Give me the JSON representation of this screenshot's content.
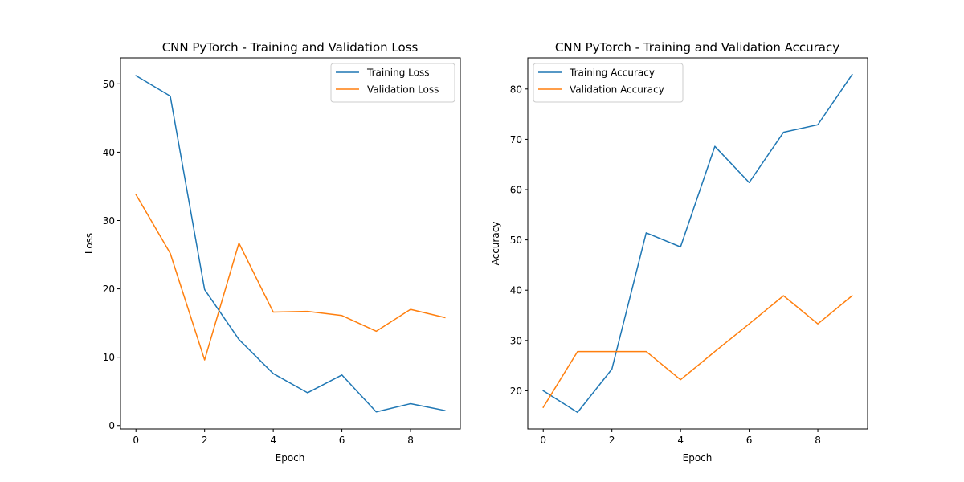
{
  "chart_data": [
    {
      "type": "line",
      "title": "CNN PyTorch - Training and Validation Loss",
      "xlabel": "Epoch",
      "ylabel": "Loss",
      "x": [
        0,
        1,
        2,
        3,
        4,
        5,
        6,
        7,
        8,
        9
      ],
      "xlim": [
        -0.45,
        9.45
      ],
      "ylim": [
        -0.5,
        53.8
      ],
      "xticks": [
        0,
        2,
        4,
        6,
        8
      ],
      "yticks": [
        0,
        10,
        20,
        30,
        40,
        50
      ],
      "grid": false,
      "legend_position": "upper right",
      "series": [
        {
          "name": "Training Loss",
          "color": "#1f77b4",
          "values": [
            51.2,
            48.2,
            19.9,
            12.6,
            7.6,
            4.8,
            7.4,
            2.0,
            3.2,
            2.2
          ]
        },
        {
          "name": "Validation Loss",
          "color": "#ff7f0e",
          "values": [
            33.8,
            25.2,
            9.6,
            26.7,
            16.6,
            16.7,
            16.1,
            13.8,
            17.0,
            15.8
          ]
        }
      ]
    },
    {
      "type": "line",
      "title": "CNN PyTorch - Training and Validation Accuracy",
      "xlabel": "Epoch",
      "ylabel": "Accuracy",
      "x": [
        0,
        1,
        2,
        3,
        4,
        5,
        6,
        7,
        8,
        9
      ],
      "xlim": [
        -0.45,
        9.45
      ],
      "ylim": [
        12.4,
        86.2
      ],
      "xticks": [
        0,
        2,
        4,
        6,
        8
      ],
      "yticks": [
        20,
        30,
        40,
        50,
        60,
        70,
        80
      ],
      "grid": false,
      "legend_position": "upper left",
      "series": [
        {
          "name": "Training Accuracy",
          "color": "#1f77b4",
          "values": [
            20.0,
            15.7,
            24.3,
            51.4,
            48.6,
            68.6,
            61.4,
            71.4,
            72.9,
            82.9
          ]
        },
        {
          "name": "Validation Accuracy",
          "color": "#ff7f0e",
          "values": [
            16.7,
            27.8,
            27.8,
            27.8,
            22.2,
            27.8,
            33.3,
            38.9,
            33.3,
            38.9
          ]
        }
      ]
    }
  ]
}
